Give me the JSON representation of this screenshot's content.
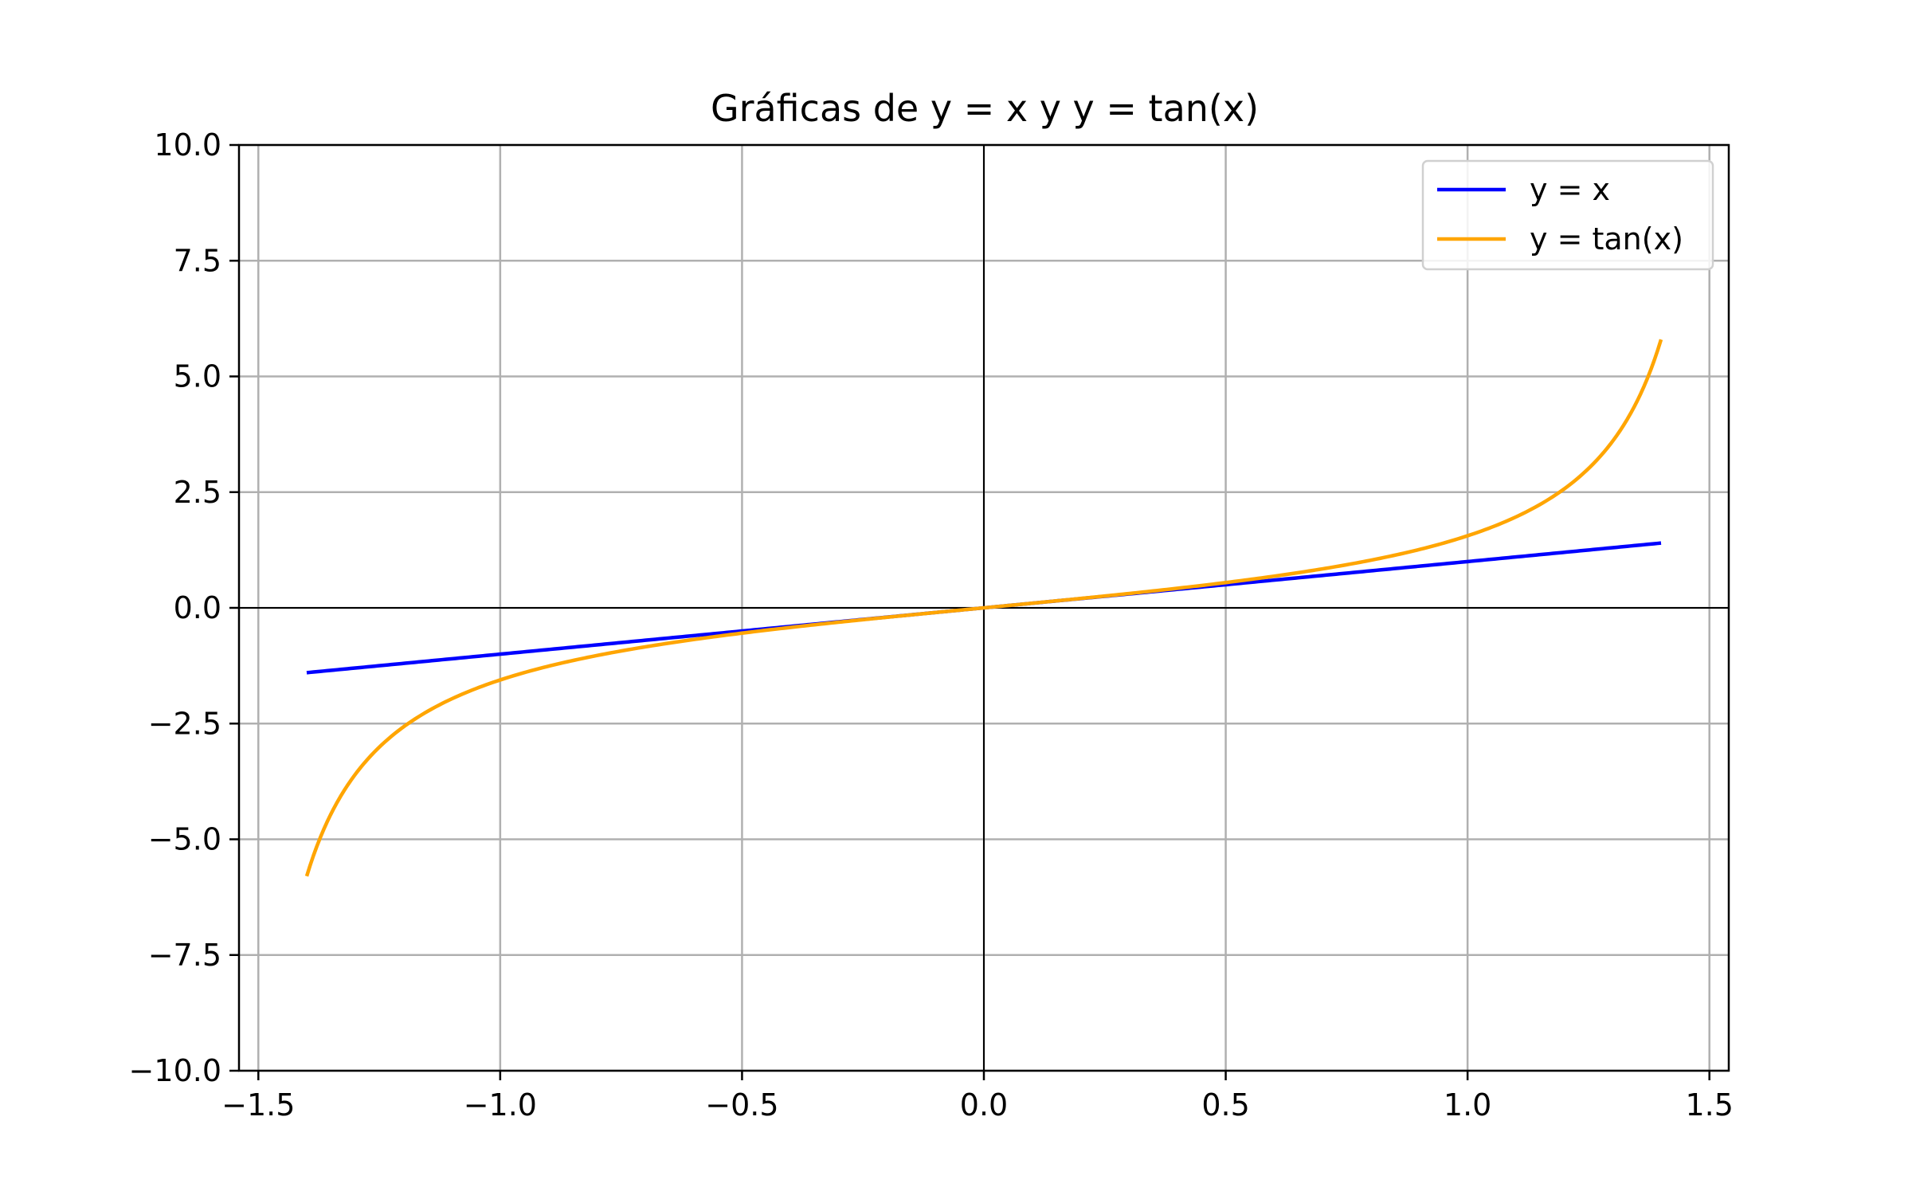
{
  "chart_data": {
    "type": "line",
    "title": "Gráficas de y = x y y = tan(x)",
    "xlabel": "",
    "ylabel": "",
    "xlim": [
      -1.54,
      1.54
    ],
    "ylim": [
      -10,
      10
    ],
    "x_ticks": [
      -1.5,
      -1.0,
      -0.5,
      0.0,
      0.5,
      1.0,
      1.5
    ],
    "x_tick_labels": [
      "−1.5",
      "−1.0",
      "−0.5",
      "0.0",
      "0.5",
      "1.0",
      "1.5"
    ],
    "y_ticks": [
      -10,
      -7.5,
      -5,
      -2.5,
      0,
      2.5,
      5,
      7.5,
      10
    ],
    "y_tick_labels": [
      "−10.0",
      "−7.5",
      "−5.0",
      "−2.5",
      "0.0",
      "2.5",
      "5.0",
      "7.5",
      "10.0"
    ],
    "grid": true,
    "zero_axes": true,
    "legend_position": "top-right",
    "x_range": [
      -1.4,
      1.4
    ],
    "series": [
      {
        "name": "y = x",
        "color": "#0000ff",
        "function": "x",
        "x": [
          -1.4,
          -1.0,
          -0.5,
          0.0,
          0.5,
          1.0,
          1.4
        ],
        "y": [
          -1.4,
          -1.0,
          -0.5,
          0.0,
          0.5,
          1.0,
          1.4
        ]
      },
      {
        "name": "y = tan(x)",
        "color": "#ffa500",
        "function": "tan(x)",
        "x": [
          -1.4,
          -1.3,
          -1.2,
          -1.0,
          -0.5,
          0.0,
          0.5,
          1.0,
          1.2,
          1.3,
          1.4
        ],
        "y": [
          -5.8,
          -3.6,
          -2.57,
          -1.56,
          -0.55,
          0.0,
          0.55,
          1.56,
          2.57,
          3.6,
          5.8
        ]
      }
    ]
  }
}
